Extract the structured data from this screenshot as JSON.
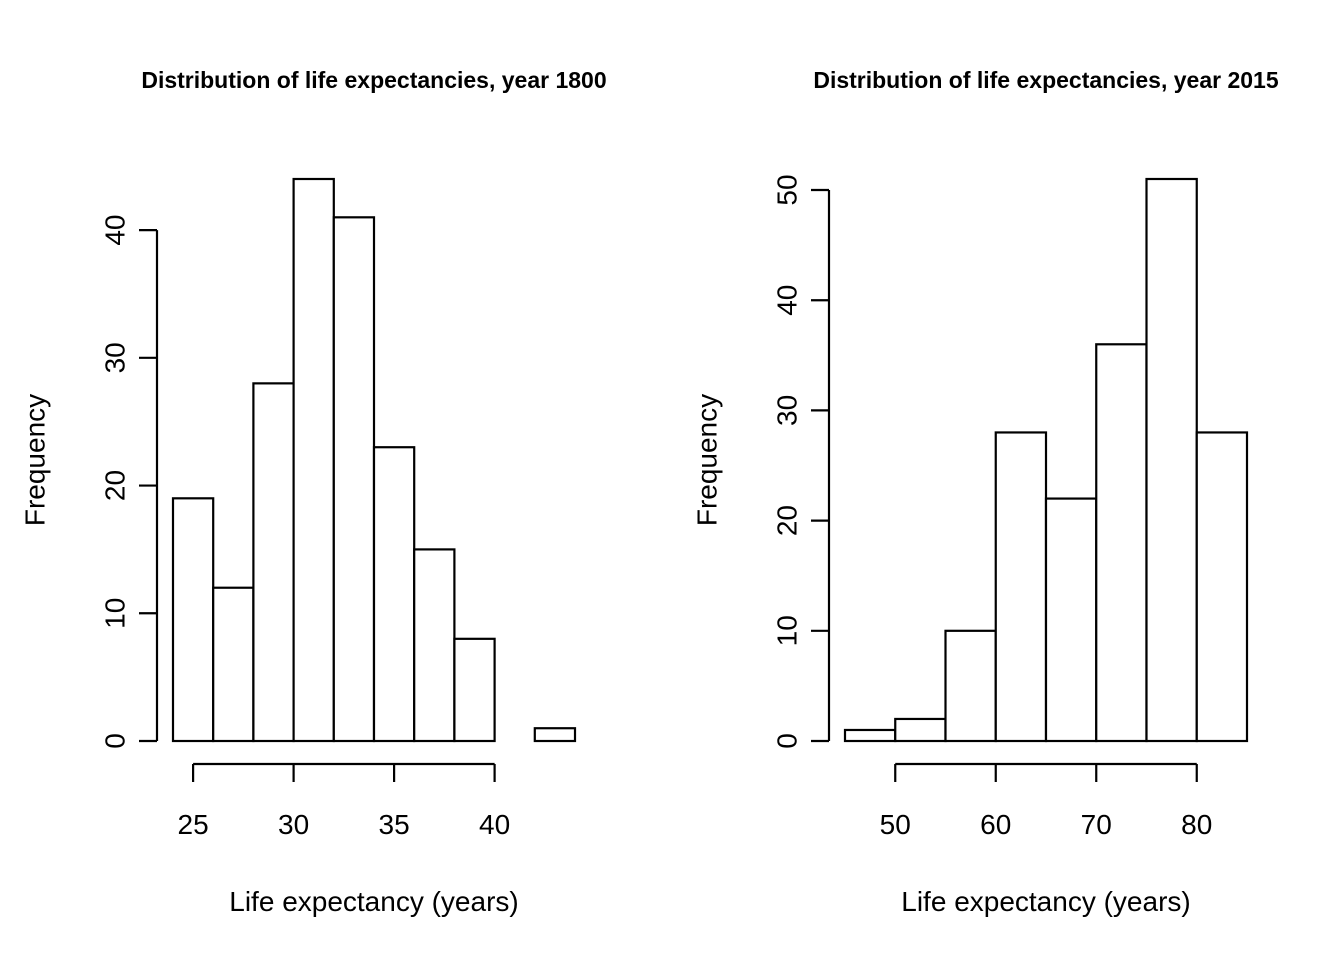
{
  "chart_data": [
    {
      "type": "bar",
      "title": "Distribution of life expectancies, year 1800",
      "xlabel": "Life expectancy (years)",
      "ylabel": "Frequency",
      "bin_edges": [
        24,
        26,
        28,
        30,
        32,
        34,
        36,
        38,
        40,
        42,
        44
      ],
      "values": [
        19,
        12,
        28,
        44,
        41,
        23,
        15,
        8,
        0,
        1
      ],
      "xticks": [
        25,
        30,
        35,
        40
      ],
      "yticks": [
        0,
        10,
        20,
        30,
        40
      ],
      "xlim": [
        24,
        44
      ],
      "ylim": [
        0,
        44
      ]
    },
    {
      "type": "bar",
      "title": "Distribution of life expectancies, year 2015",
      "xlabel": "Life expectancy (years)",
      "ylabel": "Frequency",
      "bin_edges": [
        45,
        50,
        55,
        60,
        65,
        70,
        75,
        80,
        85
      ],
      "values": [
        1,
        2,
        10,
        28,
        22,
        36,
        51,
        28
      ],
      "xticks": [
        50,
        60,
        70,
        80
      ],
      "yticks": [
        0,
        10,
        20,
        30,
        40,
        50
      ],
      "xlim": [
        45,
        85
      ],
      "ylim": [
        0,
        51
      ]
    }
  ]
}
